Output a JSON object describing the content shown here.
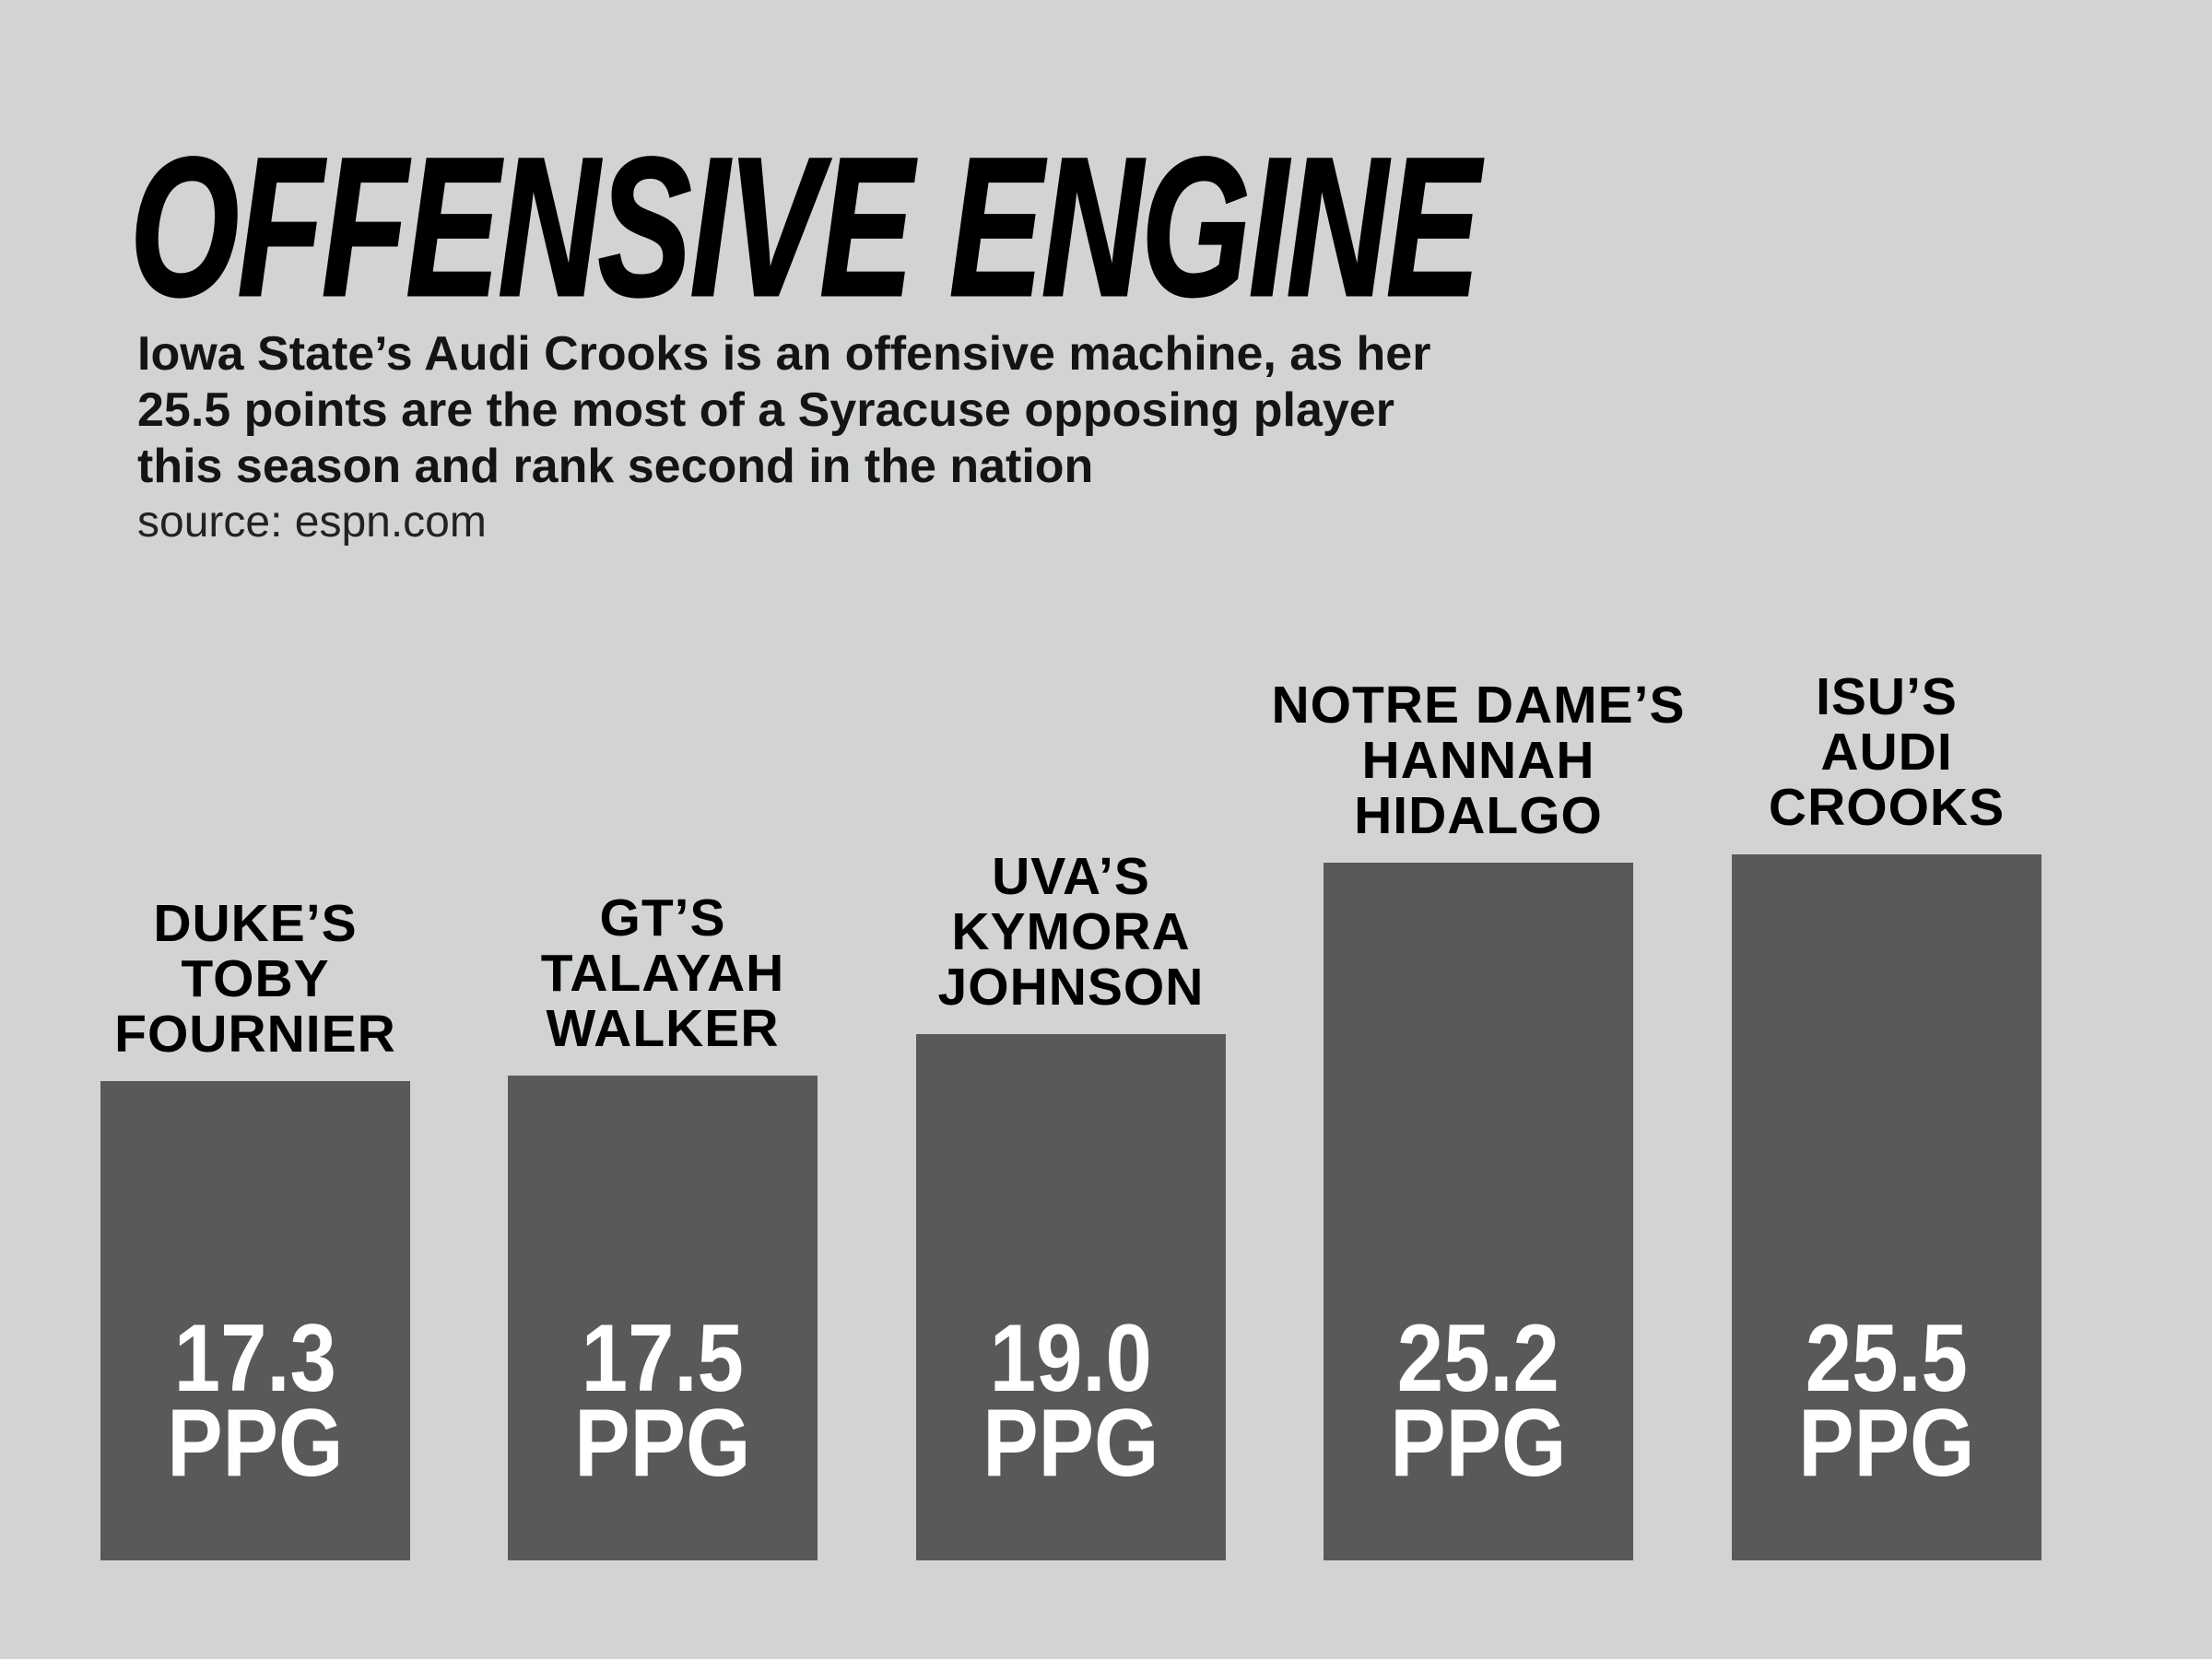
{
  "page": {
    "background_color": "#d1d3d4"
  },
  "header": {
    "title": "OFFENSIVE ENGINE",
    "subtitle": "Iowa State’s Audi Crooks is an offensive machine, as her\n25.5 points are the most of a Syracuse opposing player\nthis season and rank second in the nation",
    "source": "source: espn.com"
  },
  "chart_data": {
    "type": "bar",
    "orientation": "vertical",
    "title": "OFFENSIVE ENGINE",
    "unit": "PPG",
    "grid": false,
    "axes_visible": false,
    "legend": "none",
    "ylim": [
      0,
      25.5
    ],
    "bar_color": "#58595b",
    "label_text_color": "#000000",
    "value_text_color": "#ffffff",
    "categories": [
      "Duke’s Toby Fournier",
      "GT’s Talayah Walker",
      "UVA’s Kymora Johnson",
      "Notre Dame’s Hannah Hidalgo",
      "ISU’s Audi Crooks"
    ],
    "values": [
      17.3,
      17.5,
      19.0,
      25.2,
      25.5
    ],
    "bars": [
      {
        "label": "DUKE’S\nTOBY\nFOURNIER",
        "value": 17.3,
        "value_label": "17.3"
      },
      {
        "label": "GT’S\nTALAYAH\nWALKER",
        "value": 17.5,
        "value_label": "17.5"
      },
      {
        "label": "UVA’S\nKYMORA\nJOHNSON",
        "value": 19.0,
        "value_label": "19.0"
      },
      {
        "label": "NOTRE DAME’S\nHANNAH\nHIDALGO",
        "value": 25.2,
        "value_label": "25.2"
      },
      {
        "label": "ISU’S\nAUDI\nCROOKS",
        "value": 25.5,
        "value_label": "25.5"
      }
    ]
  }
}
